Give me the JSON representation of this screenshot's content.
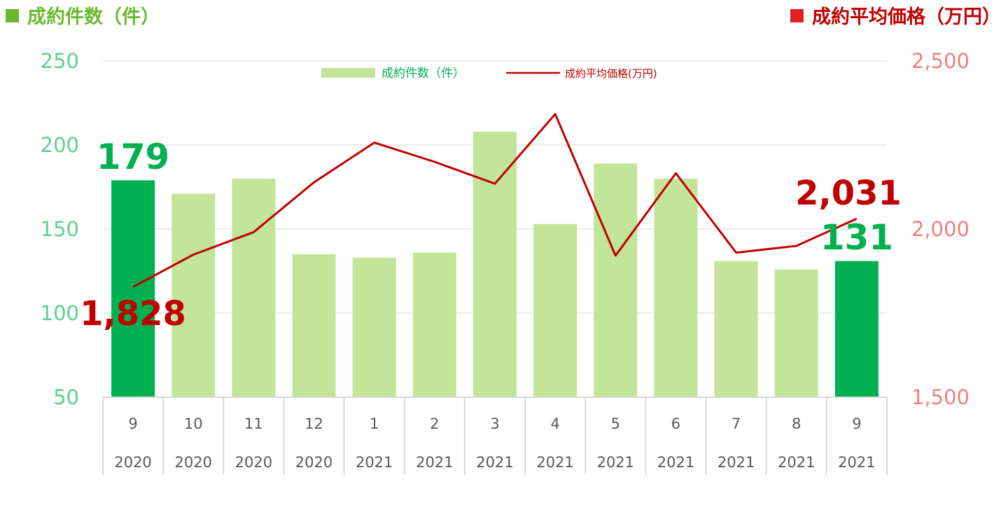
{
  "header": {
    "left_title": "成約件数（件）",
    "left_color": "#6ab82e",
    "right_title": "成約平均価格（万円）",
    "right_color": "#e02020"
  },
  "chart_data": {
    "type": "bar+line",
    "categories": [
      "9",
      "10",
      "11",
      "12",
      "1",
      "2",
      "3",
      "4",
      "5",
      "6",
      "7",
      "8",
      "9"
    ],
    "years": [
      "2020",
      "2020",
      "2020",
      "2020",
      "2021",
      "2021",
      "2021",
      "2021",
      "2021",
      "2021",
      "2021",
      "2021",
      "2021"
    ],
    "series": [
      {
        "name": "成約件数（件）",
        "type": "bar",
        "axis": "left",
        "values": [
          179,
          171,
          180,
          135,
          133,
          136,
          208,
          153,
          189,
          180,
          131,
          126,
          131
        ],
        "color": "#c3e59a",
        "highlight_color": "#00b050",
        "highlight_indices": [
          0,
          12
        ]
      },
      {
        "name": "成約平均価格(万円)",
        "type": "line",
        "axis": "right",
        "values": [
          1828,
          1924,
          1991,
          2139,
          2257,
          2200,
          2135,
          2342,
          1921,
          2166,
          1930,
          1950,
          2031
        ],
        "color": "#c00000"
      }
    ],
    "left_axis": {
      "ylim": [
        50,
        250
      ],
      "ticks": [
        "50",
        "100",
        "150",
        "200",
        "250"
      ],
      "color": "#5fcf8f"
    },
    "right_axis": {
      "ylim": [
        1500,
        2500
      ],
      "ticks": [
        "1,500",
        "2,000",
        "2,500"
      ],
      "color": "#f08080"
    },
    "annotations": {
      "bar_first": "179",
      "bar_last": "131",
      "line_first": "1,828",
      "line_last": "2,031"
    },
    "legend_position": "top-center",
    "grid": true
  }
}
